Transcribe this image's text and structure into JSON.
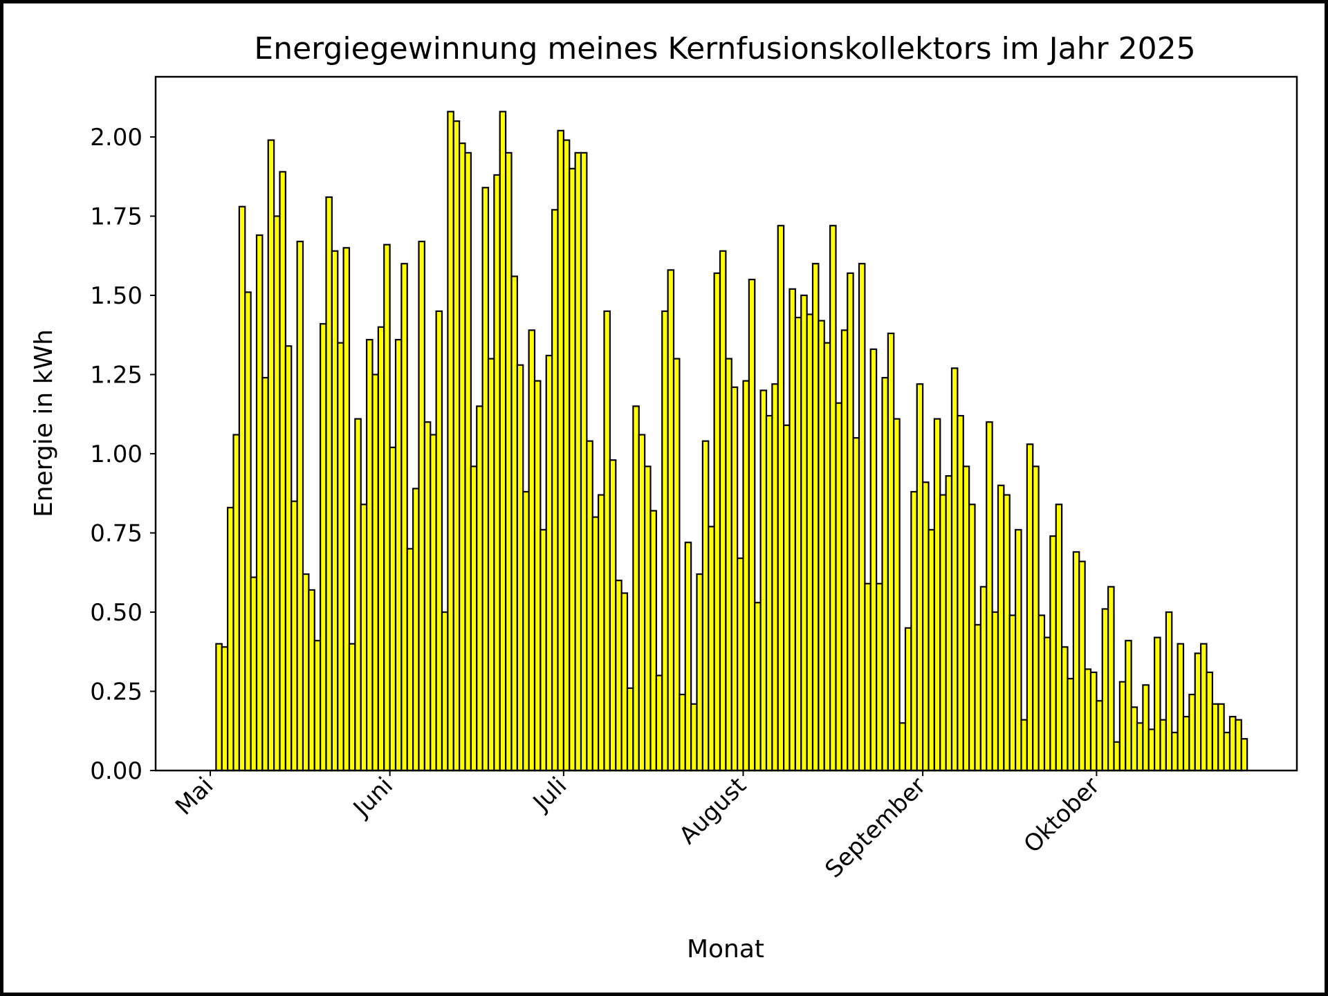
{
  "chart_data": {
    "type": "bar",
    "title": "Energiegewinnung meines Kernfusionskollektors im Jahr 2025",
    "xlabel": "Monat",
    "ylabel": "Energie in kWh",
    "ylim": [
      0,
      2.19
    ],
    "yticks": [
      "0.00",
      "0.25",
      "0.50",
      "0.75",
      "1.00",
      "1.25",
      "1.50",
      "1.75",
      "2.00"
    ],
    "xticks": [
      "Mai",
      "Juni",
      "Juli",
      "August",
      "September",
      "Oktober"
    ],
    "bar_color": "#ffff00",
    "edge_color": "#000000",
    "grid": false,
    "legend": "none",
    "daily_values_by_month": [
      {
        "month": "2025-05",
        "values": [
          0.0,
          0.4,
          0.39,
          0.83,
          1.06,
          1.78,
          1.51,
          0.61,
          1.69,
          1.24,
          1.99,
          1.75,
          1.89,
          1.34,
          0.85,
          1.67,
          0.62,
          0.57,
          0.41,
          1.41,
          1.81,
          1.64,
          1.35,
          1.65,
          0.4,
          1.11,
          0.84,
          1.36,
          1.25,
          1.4,
          1.66
        ]
      },
      {
        "month": "2025-06",
        "values": [
          1.02,
          1.36,
          1.6,
          0.7,
          0.89,
          1.67,
          1.1,
          1.06,
          1.45,
          0.5,
          2.08,
          2.05,
          1.98,
          1.95,
          0.96,
          1.15,
          1.84,
          1.3,
          1.88,
          2.08,
          1.95,
          1.56,
          1.28,
          0.88,
          1.39,
          1.23,
          0.76,
          1.31,
          1.77,
          2.02
        ]
      },
      {
        "month": "2025-07",
        "values": [
          1.99,
          1.9,
          1.95,
          1.95,
          1.04,
          0.8,
          0.87,
          1.45,
          0.98,
          0.6,
          0.56,
          0.26,
          1.15,
          1.06,
          0.96,
          0.82,
          0.3,
          1.45,
          1.58,
          1.3,
          0.24,
          0.72,
          0.21,
          0.62,
          1.04,
          0.77,
          1.57,
          1.64,
          1.3,
          1.21,
          0.67
        ]
      },
      {
        "month": "2025-08",
        "values": [
          1.23,
          1.55,
          0.53,
          1.2,
          1.12,
          1.22,
          1.72,
          1.09,
          1.52,
          1.43,
          1.5,
          1.44,
          1.6,
          1.42,
          1.35,
          1.72,
          1.16,
          1.39,
          1.57,
          1.05,
          1.6,
          0.59,
          1.33,
          0.59,
          1.24,
          1.38,
          1.11,
          0.15,
          0.45,
          0.88,
          1.22
        ]
      },
      {
        "month": "2025-09",
        "values": [
          0.91,
          0.76,
          1.11,
          0.87,
          0.93,
          1.27,
          1.12,
          0.96,
          0.84,
          0.46,
          0.58,
          1.1,
          0.5,
          0.9,
          0.87,
          0.49,
          0.76,
          0.16,
          1.03,
          0.96,
          0.49,
          0.42,
          0.74,
          0.84,
          0.39,
          0.29,
          0.69,
          0.66,
          0.32,
          0.31
        ]
      },
      {
        "month": "2025-10",
        "values": [
          0.22,
          0.51,
          0.58,
          0.09,
          0.28,
          0.41,
          0.2,
          0.15,
          0.27,
          0.13,
          0.42,
          0.16,
          0.5,
          0.12,
          0.4,
          0.17,
          0.24,
          0.37,
          0.4,
          0.31,
          0.21,
          0.21,
          0.12,
          0.17,
          0.16,
          0.1
        ]
      }
    ]
  }
}
